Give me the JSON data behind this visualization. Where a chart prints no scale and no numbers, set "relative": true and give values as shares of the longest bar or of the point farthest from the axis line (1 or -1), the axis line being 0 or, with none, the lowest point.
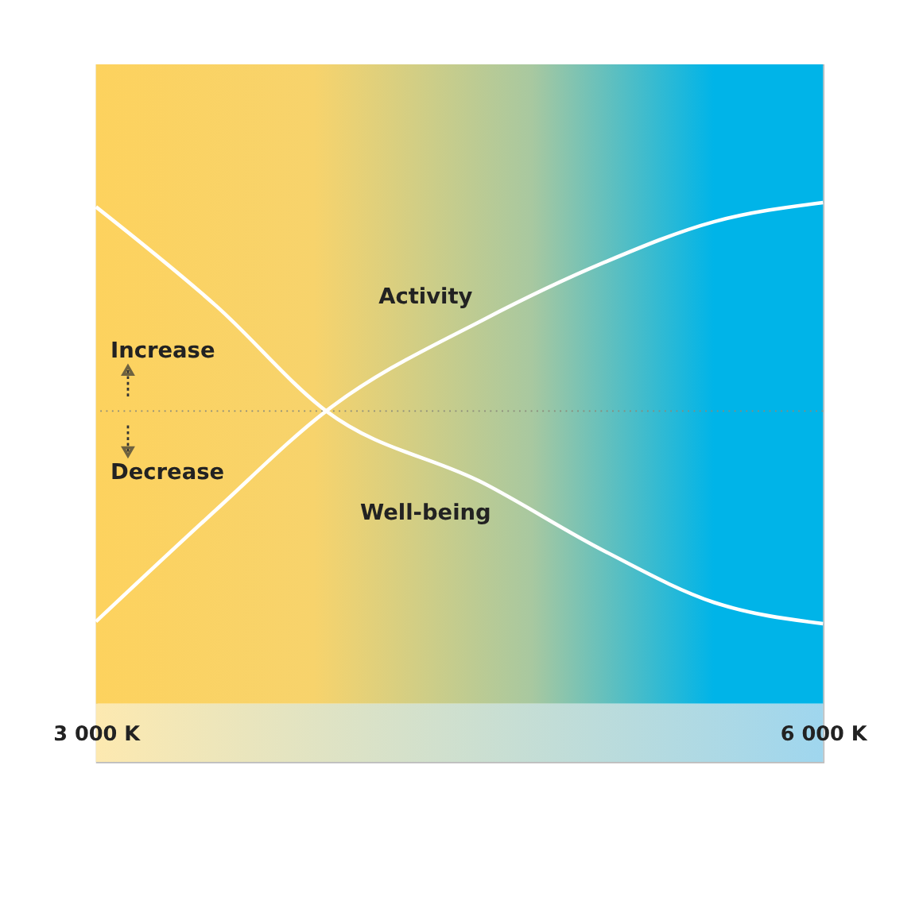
{
  "chart_data": {
    "type": "line",
    "relative": true,
    "x": [
      3000,
      3500,
      3950,
      4600,
      5100,
      5550,
      6000
    ],
    "xlim": [
      3000,
      6000
    ],
    "xticks": [
      {
        "value": 3000,
        "label": "3 000 K"
      },
      {
        "value": 6000,
        "label": "6 000 K"
      }
    ],
    "series": [
      {
        "name": "Activity",
        "color": "#ffffff",
        "values": [
          -0.99,
          -0.46,
          0,
          0.43,
          0.7,
          0.89,
          0.98
        ]
      },
      {
        "name": "Well-being",
        "color": "#ffffff",
        "values": [
          0.96,
          0.49,
          0,
          -0.34,
          -0.66,
          -0.9,
          -1.0
        ]
      }
    ],
    "ref_lines": [
      {
        "axis": "y",
        "value": 0,
        "color": "#8a8a7a",
        "line_style": "dotted"
      }
    ],
    "annotations": [
      "Increase",
      "Decrease"
    ],
    "grid": false,
    "marker": "none",
    "line_style": "solid"
  }
}
